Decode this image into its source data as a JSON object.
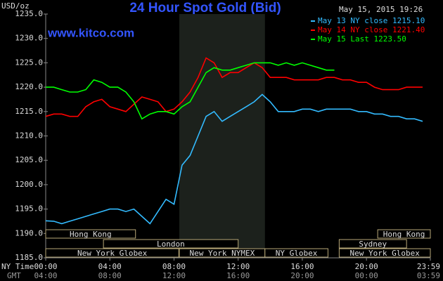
{
  "chart_data": {
    "type": "line",
    "title": "24 Hour Spot Gold (Bid)",
    "unit_label": "USD/oz",
    "timestamp": "May 15, 2015 19:26",
    "watermark": "www.kitco.com",
    "x_row_label": "NY Time",
    "x2_row_label": "GMT",
    "x": [
      0,
      0.5,
      1,
      1.5,
      2,
      2.5,
      3,
      3.5,
      4,
      4.5,
      5,
      5.5,
      6,
      6.5,
      7,
      7.5,
      8,
      8.5,
      9,
      9.5,
      10,
      10.5,
      11,
      11.5,
      12,
      12.5,
      13,
      13.5,
      14,
      14.5,
      15,
      15.5,
      16,
      16.5,
      17,
      17.5,
      18,
      18.5,
      19,
      19.5,
      20,
      20.5,
      21,
      21.5,
      22,
      22.5,
      23,
      23.5
    ],
    "series": [
      {
        "name": "May 13 NY close 1215.10",
        "color": "#33bbff",
        "values": [
          1192.6,
          1192.5,
          1192,
          1192.5,
          1193,
          1193.5,
          1194,
          1194.5,
          1195,
          1195,
          1194.5,
          1195,
          1193.5,
          1192,
          1194.5,
          1197,
          1196,
          1204,
          1206,
          1210,
          1214,
          1215,
          1213,
          1214,
          1215,
          1216,
          1217,
          1218.5,
          1217,
          1215,
          1215,
          1215,
          1215.5,
          1215.5,
          1215,
          1215.5,
          1215.5,
          1215.5,
          1215.5,
          1215,
          1215,
          1214.5,
          1214.5,
          1214,
          1214,
          1213.5,
          1213.5,
          1213
        ]
      },
      {
        "name": "May 14 NY close 1221.40",
        "color": "#ff0000",
        "values": [
          1214,
          1214.5,
          1214.5,
          1214,
          1214,
          1216,
          1217,
          1217.5,
          1216,
          1215.5,
          1215,
          1216.5,
          1218,
          1217.5,
          1217,
          1215,
          1215.5,
          1217,
          1219,
          1222,
          1226,
          1225,
          1222,
          1223,
          1223,
          1224,
          1225,
          1224,
          1222,
          1222,
          1222,
          1221.5,
          1221.5,
          1221.5,
          1221.5,
          1222,
          1222,
          1221.5,
          1221.5,
          1221,
          1221,
          1220,
          1219.5,
          1219.5,
          1219.5,
          1220,
          1220,
          1220
        ]
      },
      {
        "name": "May 15 Last 1223.50",
        "color": "#00ff00",
        "values": [
          1220,
          1220,
          1219.5,
          1219,
          1219,
          1219.5,
          1221.5,
          1221,
          1220,
          1220,
          1219,
          1217,
          1213.5,
          1214.5,
          1215,
          1215,
          1214.5,
          1216,
          1217,
          1220,
          1223,
          1224,
          1223.5,
          1223.5,
          1224,
          1224.5,
          1225,
          1225,
          1225,
          1224.5,
          1225,
          1224.5,
          1225,
          1224.5,
          1224,
          1223.5,
          1223.5,
          null,
          null,
          null,
          null,
          null,
          null,
          null,
          null,
          null,
          null,
          null
        ]
      }
    ],
    "xlim": [
      0,
      23.983
    ],
    "xticks": [
      {
        "value": 0,
        "label": "00:00"
      },
      {
        "value": 4,
        "label": "04:00"
      },
      {
        "value": 8,
        "label": "08:00"
      },
      {
        "value": 12,
        "label": "12:00"
      },
      {
        "value": 16,
        "label": "16:00"
      },
      {
        "value": 20,
        "label": "20:00"
      },
      {
        "value": 23.983,
        "label": "23:59"
      }
    ],
    "gmt_labels": [
      "04:00",
      "08:00",
      "12:00",
      "16:00",
      "20:00",
      "00:00",
      "03:59"
    ],
    "ylim": [
      1185,
      1235
    ],
    "yticks": [
      {
        "value": 1185,
        "label": "1185.0"
      },
      {
        "value": 1190,
        "label": "1190.0"
      },
      {
        "value": 1195,
        "label": "1195.0"
      },
      {
        "value": 1200,
        "label": "1200.0"
      },
      {
        "value": 1205,
        "label": "1205.0"
      },
      {
        "value": 1210,
        "label": "1210.0"
      },
      {
        "value": 1215,
        "label": "1215.0"
      },
      {
        "value": 1220,
        "label": "1220.0"
      },
      {
        "value": 1225,
        "label": "1225.0"
      },
      {
        "value": 1230,
        "label": "1230.0"
      },
      {
        "value": 1235,
        "label": "1235.0"
      }
    ],
    "highlight": [
      8.33,
      13.67
    ],
    "session_rows": [
      [
        {
          "label": "Hong Kong",
          "start": 0,
          "end": 5.6
        },
        {
          "label": "Hong Kong",
          "start": 20.7,
          "end": 23.983
        }
      ],
      [
        {
          "label": "London",
          "start": 3.6,
          "end": 12
        },
        {
          "label": "Sydney",
          "start": 18.3,
          "end": 22.5
        }
      ],
      [
        {
          "label": "New York Globex",
          "start": 0,
          "end": 8.3
        },
        {
          "label": "New York NYMEX",
          "start": 8.33,
          "end": 13.67
        },
        {
          "label": "NY Globex",
          "start": 13.67,
          "end": 17.6
        },
        {
          "label": "New York Globex",
          "start": 18.3,
          "end": 23.983
        }
      ]
    ],
    "grid": false
  }
}
